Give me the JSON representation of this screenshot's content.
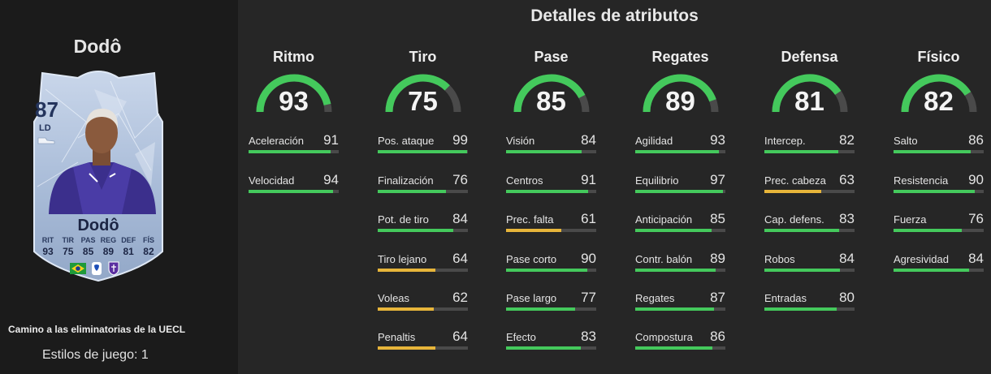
{
  "section_title": "Detalles de atributos",
  "player": {
    "title_name": "Dodô",
    "card": {
      "rating": "87",
      "position": "LD",
      "name": "Dodô",
      "stats": [
        {
          "label": "RIT",
          "value": "93"
        },
        {
          "label": "TIR",
          "value": "75"
        },
        {
          "label": "PAS",
          "value": "85"
        },
        {
          "label": "REG",
          "value": "89"
        },
        {
          "label": "DEF",
          "value": "81"
        },
        {
          "label": "FÍS",
          "value": "82"
        }
      ],
      "badges": [
        "brazil-flag-icon",
        "league-logo-icon",
        "club-crest-icon"
      ]
    },
    "edition": "Camino a las eliminatorias de la UECL",
    "playstyles": "Estilos de juego: 1"
  },
  "colors": {
    "high": "#44c95c",
    "mid": "#e7b53a",
    "track": "#4a4a4a"
  },
  "categories": [
    {
      "name": "Ritmo",
      "value": 93,
      "attrs": [
        {
          "label": "Aceleración",
          "value": 91
        },
        {
          "label": "Velocidad",
          "value": 94
        }
      ]
    },
    {
      "name": "Tiro",
      "value": 75,
      "attrs": [
        {
          "label": "Pos. ataque",
          "value": 99
        },
        {
          "label": "Finalización",
          "value": 76
        },
        {
          "label": "Pot. de tiro",
          "value": 84
        },
        {
          "label": "Tiro lejano",
          "value": 64
        },
        {
          "label": "Voleas",
          "value": 62
        },
        {
          "label": "Penaltis",
          "value": 64
        }
      ]
    },
    {
      "name": "Pase",
      "value": 85,
      "attrs": [
        {
          "label": "Visión",
          "value": 84
        },
        {
          "label": "Centros",
          "value": 91
        },
        {
          "label": "Prec. falta",
          "value": 61
        },
        {
          "label": "Pase corto",
          "value": 90
        },
        {
          "label": "Pase largo",
          "value": 77
        },
        {
          "label": "Efecto",
          "value": 83
        }
      ]
    },
    {
      "name": "Regates",
      "value": 89,
      "attrs": [
        {
          "label": "Agilidad",
          "value": 93
        },
        {
          "label": "Equilibrio",
          "value": 97
        },
        {
          "label": "Anticipación",
          "value": 85
        },
        {
          "label": "Contr. balón",
          "value": 89
        },
        {
          "label": "Regates",
          "value": 87
        },
        {
          "label": "Compostura",
          "value": 86
        }
      ]
    },
    {
      "name": "Defensa",
      "value": 81,
      "attrs": [
        {
          "label": "Intercep.",
          "value": 82
        },
        {
          "label": "Prec. cabeza",
          "value": 63
        },
        {
          "label": "Cap. defens.",
          "value": 83
        },
        {
          "label": "Robos",
          "value": 84
        },
        {
          "label": "Entradas",
          "value": 80
        }
      ]
    },
    {
      "name": "Físico",
      "value": 82,
      "attrs": [
        {
          "label": "Salto",
          "value": 86
        },
        {
          "label": "Resistencia",
          "value": 90
        },
        {
          "label": "Fuerza",
          "value": 76
        },
        {
          "label": "Agresividad",
          "value": 84
        }
      ]
    }
  ]
}
